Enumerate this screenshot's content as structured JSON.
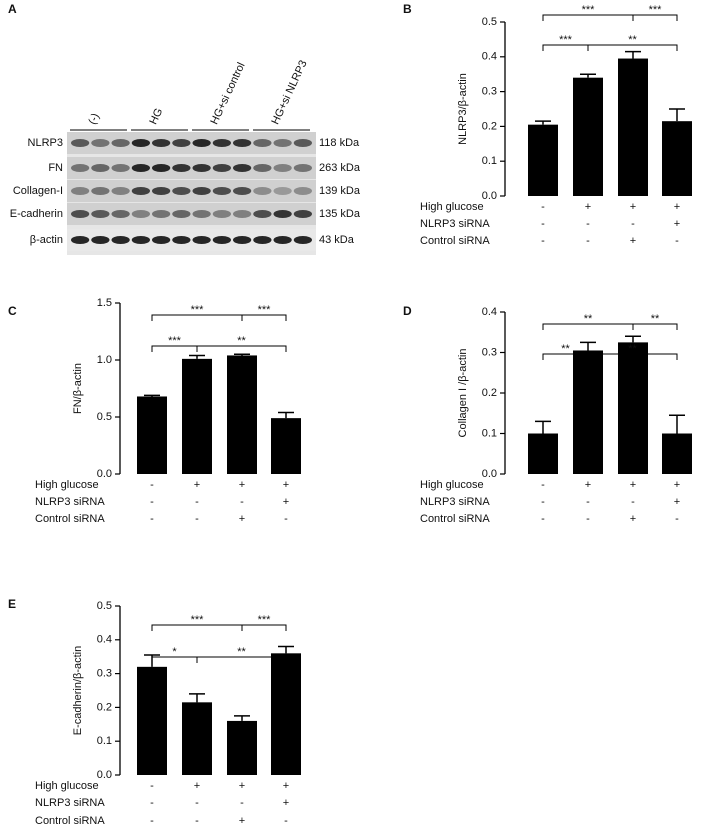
{
  "blot": {
    "panel": "A",
    "groups": [
      "(-)",
      "HG",
      "HG+si control",
      "HG+si NLRP3"
    ],
    "proteins": [
      "NLRP3",
      "FN",
      "Collagen-I",
      "E-cadherin",
      "β-actin"
    ],
    "sizes": [
      "118 kDa",
      "263 kDa",
      "139 kDa",
      "135 kDa",
      "43 kDa"
    ]
  },
  "chart_data": [
    {
      "type": "bar",
      "panel": "B",
      "y_label": "NLRP3/β-actin",
      "color": "#000000",
      "values": [
        0.205,
        0.34,
        0.395,
        0.215
      ],
      "errors": [
        0.01,
        0.01,
        0.02,
        0.035
      ],
      "ylim": [
        0,
        0.5
      ],
      "yticks": [
        {
          "value": 0,
          "label": "0.0"
        },
        {
          "value": 0.1,
          "label": "0.1"
        },
        {
          "value": 0.2,
          "label": "0.2"
        },
        {
          "value": 0.3,
          "label": "0.3"
        },
        {
          "value": 0.4,
          "label": "0.4"
        },
        {
          "value": 0.5,
          "label": "0.5"
        }
      ],
      "conditions": [
        {
          "name": "High glucose",
          "signs": [
            "-",
            "+",
            "+",
            "+"
          ]
        },
        {
          "name": "NLRP3 siRNA",
          "signs": [
            "-",
            "-",
            "-",
            "+"
          ]
        },
        {
          "name": "Control siRNA",
          "signs": [
            "-",
            "-",
            "+",
            "-"
          ]
        }
      ],
      "significance": [
        {
          "label": "***",
          "between": [
            0,
            2
          ]
        },
        {
          "label": "***",
          "between": [
            2,
            3
          ]
        },
        {
          "label": "***",
          "between": [
            0,
            1
          ]
        },
        {
          "label": "**",
          "between": [
            1,
            3
          ]
        }
      ]
    },
    {
      "type": "bar",
      "panel": "C",
      "y_label": "FN/β-actin",
      "color": "#000000",
      "values": [
        0.68,
        1.01,
        1.04,
        0.49
      ],
      "errors": [
        0.01,
        0.03,
        0.01,
        0.05
      ],
      "ylim": [
        0,
        1.5
      ],
      "yticks": [
        {
          "value": 0,
          "label": "0.0"
        },
        {
          "value": 0.5,
          "label": "0.5"
        },
        {
          "value": 1,
          "label": "1.0"
        },
        {
          "value": 1.5,
          "label": "1.5"
        }
      ],
      "conditions": [
        {
          "name": "High glucose",
          "signs": [
            "-",
            "+",
            "+",
            "+"
          ]
        },
        {
          "name": "NLRP3 siRNA",
          "signs": [
            "-",
            "-",
            "-",
            "+"
          ]
        },
        {
          "name": "Control siRNA",
          "signs": [
            "-",
            "-",
            "+",
            "-"
          ]
        }
      ],
      "significance": [
        {
          "label": "***",
          "between": [
            0,
            2
          ]
        },
        {
          "label": "***",
          "between": [
            2,
            3
          ]
        },
        {
          "label": "***",
          "between": [
            0,
            1
          ]
        },
        {
          "label": "**",
          "between": [
            1,
            3
          ]
        }
      ]
    },
    {
      "type": "bar",
      "panel": "D",
      "y_label": "Collagen I /β-actin",
      "color": "#000000",
      "values": [
        0.1,
        0.305,
        0.325,
        0.1
      ],
      "errors": [
        0.03,
        0.02,
        0.015,
        0.045
      ],
      "ylim": [
        0,
        0.4
      ],
      "yticks": [
        {
          "value": 0,
          "label": "0.0"
        },
        {
          "value": 0.1,
          "label": "0.1"
        },
        {
          "value": 0.2,
          "label": "0.2"
        },
        {
          "value": 0.3,
          "label": "0.3"
        },
        {
          "value": 0.4,
          "label": "0.4"
        }
      ],
      "conditions": [
        {
          "name": "High glucose",
          "signs": [
            "-",
            "+",
            "+",
            "+"
          ]
        },
        {
          "name": "NLRP3 siRNA",
          "signs": [
            "-",
            "-",
            "-",
            "+"
          ]
        },
        {
          "name": "Control siRNA",
          "signs": [
            "-",
            "-",
            "+",
            "-"
          ]
        }
      ],
      "significance": [
        {
          "label": "**",
          "between": [
            0,
            2
          ]
        },
        {
          "label": "**",
          "between": [
            2,
            3
          ]
        },
        {
          "label": "**",
          "between": [
            0,
            1
          ]
        },
        {
          "label": "**",
          "between": [
            1,
            3
          ]
        }
      ]
    },
    {
      "type": "bar",
      "panel": "E",
      "y_label": "E-cadherin/β-actin",
      "color": "#000000",
      "values": [
        0.32,
        0.215,
        0.16,
        0.36
      ],
      "errors": [
        0.035,
        0.025,
        0.015,
        0.02
      ],
      "ylim": [
        0,
        0.5
      ],
      "yticks": [
        {
          "value": 0,
          "label": "0.0"
        },
        {
          "value": 0.1,
          "label": "0.1"
        },
        {
          "value": 0.2,
          "label": "0.2"
        },
        {
          "value": 0.3,
          "label": "0.3"
        },
        {
          "value": 0.4,
          "label": "0.4"
        },
        {
          "value": 0.5,
          "label": "0.5"
        }
      ],
      "conditions": [
        {
          "name": "High glucose",
          "signs": [
            "-",
            "+",
            "+",
            "+"
          ]
        },
        {
          "name": "NLRP3 siRNA",
          "signs": [
            "-",
            "-",
            "-",
            "+"
          ]
        },
        {
          "name": "Control siRNA",
          "signs": [
            "-",
            "-",
            "+",
            "-"
          ]
        }
      ],
      "significance": [
        {
          "label": "***",
          "between": [
            0,
            2
          ]
        },
        {
          "label": "***",
          "between": [
            2,
            3
          ]
        },
        {
          "label": "*",
          "between": [
            0,
            1
          ]
        },
        {
          "label": "**",
          "between": [
            1,
            3
          ]
        }
      ]
    }
  ]
}
